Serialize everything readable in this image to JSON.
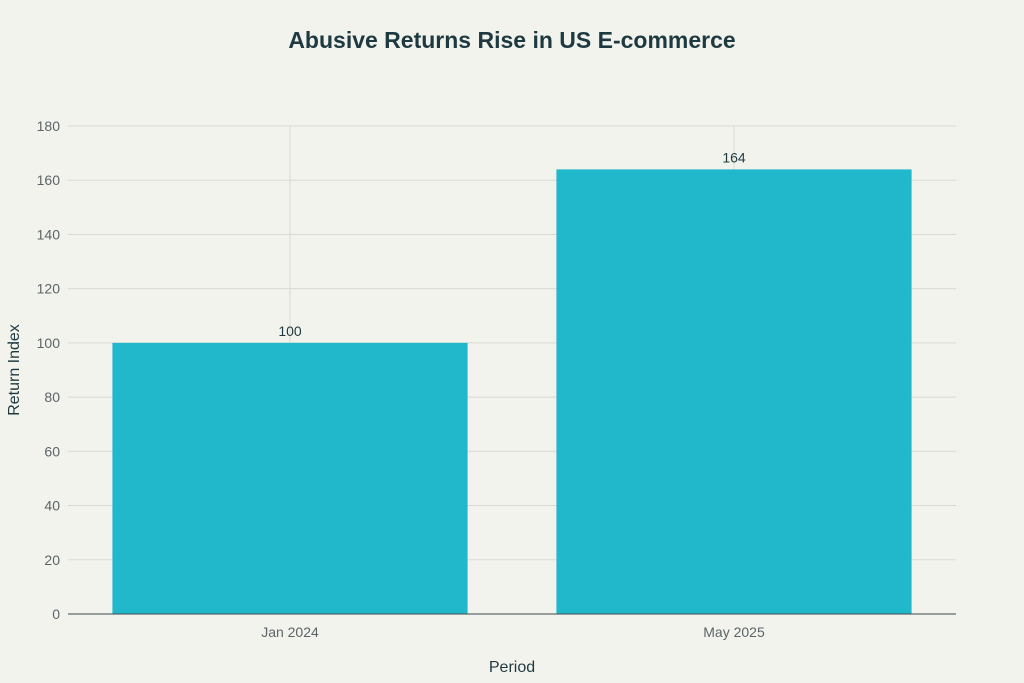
{
  "chart_data": {
    "type": "bar",
    "title": "Abusive Returns Rise in US E-commerce",
    "xlabel": "Period",
    "ylabel": "Return Index",
    "categories": [
      "Jan 2024",
      "May 2025"
    ],
    "values": [
      100,
      164
    ],
    "data_labels": [
      "100",
      "164"
    ],
    "ylim": [
      0,
      180
    ],
    "yticks": [
      0,
      20,
      40,
      60,
      80,
      100,
      120,
      140,
      160,
      180
    ],
    "ytick_labels": [
      "0",
      "20",
      "40",
      "60",
      "80",
      "100",
      "120",
      "140",
      "160",
      "180"
    ],
    "grid": true,
    "legend": "none",
    "bar_color": "#21b8cc",
    "background_color": "#f3f3ee",
    "text_color": "#1e3a40",
    "axis_text_color": "#5b6468",
    "grid_color": "#d8d9d4"
  }
}
